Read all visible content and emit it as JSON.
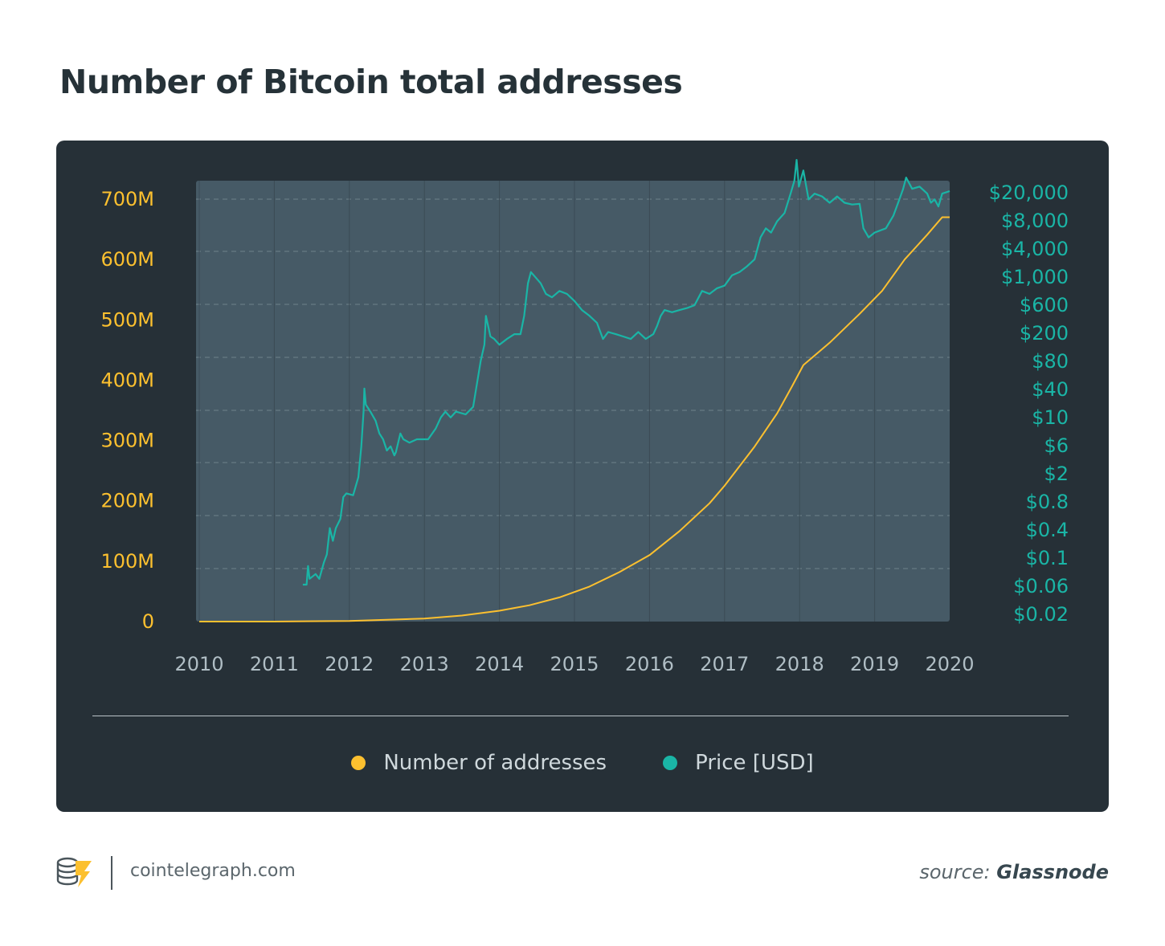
{
  "page": {
    "title": "Number of Bitcoin total addresses"
  },
  "footer": {
    "site": "cointelegraph.com",
    "source_prefix": "source:",
    "source_name": "Glassnode"
  },
  "legend": [
    {
      "label": "Number of addresses",
      "color": "#fcc02f"
    },
    {
      "label": "Price [USD]",
      "color": "#1ab5a6"
    }
  ],
  "colors": {
    "panel": "#263037",
    "plot": "#465a66",
    "addresses": "#fcc02f",
    "price": "#1ab5a6",
    "x_tick": "#b0bec5"
  },
  "chart_data": {
    "type": "line",
    "title": "Number of Bitcoin total addresses",
    "xlim": [
      2010,
      2020
    ],
    "x_ticks": [
      "2010",
      "2011",
      "2012",
      "2013",
      "2014",
      "2015",
      "2016",
      "2017",
      "2018",
      "2019",
      "2020"
    ],
    "y_left": {
      "range": [
        0,
        700000000
      ],
      "ticks": [
        0,
        100000000,
        200000000,
        300000000,
        400000000,
        500000000,
        600000000,
        700000000
      ],
      "tick_labels": [
        "0",
        "100M",
        "200M",
        "300M",
        "400M",
        "500M",
        "600M",
        "700M"
      ]
    },
    "y_right": {
      "scale": "log",
      "tick_labels": [
        "$0.02",
        "$0.06",
        "$0.1",
        "$0.4",
        "$0.8",
        "$2",
        "$6",
        "$10",
        "$40",
        "$80",
        "$200",
        "$600",
        "$1,000",
        "$4,000",
        "$8,000",
        "$20,000"
      ]
    },
    "grid": {
      "horizontal": true,
      "vertical": true
    },
    "legend_position": "bottom",
    "series": [
      {
        "name": "Number of addresses",
        "axis": "left",
        "color": "#fcc02f",
        "points": [
          [
            2010.0,
            0
          ],
          [
            2011.0,
            0
          ],
          [
            2012.0,
            1000000
          ],
          [
            2012.5,
            3000000
          ],
          [
            2013.0,
            5000000
          ],
          [
            2013.5,
            10000000
          ],
          [
            2014.0,
            18000000
          ],
          [
            2014.4,
            27000000
          ],
          [
            2014.8,
            40000000
          ],
          [
            2015.2,
            58000000
          ],
          [
            2015.6,
            82000000
          ],
          [
            2016.0,
            110000000
          ],
          [
            2016.4,
            150000000
          ],
          [
            2016.8,
            196000000
          ],
          [
            2017.0,
            225000000
          ],
          [
            2017.4,
            290000000
          ],
          [
            2017.7,
            345000000
          ],
          [
            2017.9,
            390000000
          ],
          [
            2018.05,
            425000000
          ],
          [
            2018.4,
            462000000
          ],
          [
            2018.8,
            510000000
          ],
          [
            2019.1,
            548000000
          ],
          [
            2019.4,
            600000000
          ],
          [
            2019.7,
            641000000
          ],
          [
            2019.9,
            670000000
          ],
          [
            2020.0,
            670000000
          ]
        ]
      },
      {
        "name": "Price [USD]",
        "axis": "right",
        "color": "#1ab5a6",
        "points": [
          [
            2011.38,
            0.05
          ],
          [
            2011.43,
            0.05
          ],
          [
            2011.45,
            0.09
          ],
          [
            2011.47,
            0.06
          ],
          [
            2011.55,
            0.07
          ],
          [
            2011.6,
            0.06
          ],
          [
            2011.66,
            0.1
          ],
          [
            2011.7,
            0.13
          ],
          [
            2011.74,
            0.3
          ],
          [
            2011.78,
            0.2
          ],
          [
            2011.82,
            0.3
          ],
          [
            2011.88,
            0.4
          ],
          [
            2011.92,
            0.8
          ],
          [
            2011.96,
            0.9
          ],
          [
            2012.05,
            0.85
          ],
          [
            2012.12,
            1.5
          ],
          [
            2012.16,
            4
          ],
          [
            2012.19,
            12
          ],
          [
            2012.2,
            25
          ],
          [
            2012.22,
            15
          ],
          [
            2012.28,
            12
          ],
          [
            2012.35,
            9
          ],
          [
            2012.4,
            6
          ],
          [
            2012.45,
            5
          ],
          [
            2012.5,
            3.5
          ],
          [
            2012.55,
            4
          ],
          [
            2012.6,
            3
          ],
          [
            2012.62,
            3.3
          ],
          [
            2012.68,
            6
          ],
          [
            2012.72,
            5
          ],
          [
            2012.8,
            4.5
          ],
          [
            2012.9,
            5
          ],
          [
            2013.05,
            5
          ],
          [
            2013.15,
            7
          ],
          [
            2013.22,
            10
          ],
          [
            2013.28,
            12
          ],
          [
            2013.35,
            10
          ],
          [
            2013.42,
            12
          ],
          [
            2013.55,
            11
          ],
          [
            2013.65,
            14
          ],
          [
            2013.75,
            60
          ],
          [
            2013.8,
            100
          ],
          [
            2013.82,
            250
          ],
          [
            2013.88,
            130
          ],
          [
            2013.93,
            120
          ],
          [
            2014.0,
            100
          ],
          [
            2014.1,
            120
          ],
          [
            2014.2,
            140
          ],
          [
            2014.28,
            140
          ],
          [
            2014.33,
            250
          ],
          [
            2014.38,
            700
          ],
          [
            2014.42,
            1000
          ],
          [
            2014.48,
            850
          ],
          [
            2014.55,
            700
          ],
          [
            2014.62,
            500
          ],
          [
            2014.7,
            450
          ],
          [
            2014.8,
            550
          ],
          [
            2014.9,
            500
          ],
          [
            2015.0,
            400
          ],
          [
            2015.1,
            300
          ],
          [
            2015.2,
            250
          ],
          [
            2015.3,
            200
          ],
          [
            2015.38,
            120
          ],
          [
            2015.45,
            150
          ],
          [
            2015.55,
            140
          ],
          [
            2015.65,
            130
          ],
          [
            2015.75,
            120
          ],
          [
            2015.85,
            150
          ],
          [
            2015.95,
            120
          ],
          [
            2016.05,
            140
          ],
          [
            2016.1,
            180
          ],
          [
            2016.15,
            250
          ],
          [
            2016.2,
            300
          ],
          [
            2016.3,
            280
          ],
          [
            2016.4,
            300
          ],
          [
            2016.5,
            320
          ],
          [
            2016.6,
            350
          ],
          [
            2016.7,
            550
          ],
          [
            2016.8,
            500
          ],
          [
            2016.9,
            600
          ],
          [
            2017.0,
            650
          ],
          [
            2017.1,
            900
          ],
          [
            2017.2,
            1000
          ],
          [
            2017.3,
            1200
          ],
          [
            2017.4,
            1500
          ],
          [
            2017.48,
            3000
          ],
          [
            2017.55,
            4000
          ],
          [
            2017.62,
            3500
          ],
          [
            2017.7,
            5000
          ],
          [
            2017.8,
            6500
          ],
          [
            2017.88,
            12000
          ],
          [
            2017.93,
            18000
          ],
          [
            2017.96,
            35000
          ],
          [
            2017.99,
            15000
          ],
          [
            2018.05,
            25000
          ],
          [
            2018.12,
            10000
          ],
          [
            2018.2,
            12000
          ],
          [
            2018.3,
            11000
          ],
          [
            2018.4,
            9000
          ],
          [
            2018.5,
            11000
          ],
          [
            2018.6,
            9000
          ],
          [
            2018.7,
            8500
          ],
          [
            2018.8,
            8700
          ],
          [
            2018.85,
            4000
          ],
          [
            2018.92,
            3000
          ],
          [
            2019.0,
            3500
          ],
          [
            2019.15,
            4000
          ],
          [
            2019.25,
            6000
          ],
          [
            2019.33,
            10000
          ],
          [
            2019.38,
            14000
          ],
          [
            2019.42,
            20000
          ],
          [
            2019.5,
            14000
          ],
          [
            2019.6,
            15000
          ],
          [
            2019.7,
            12000
          ],
          [
            2019.75,
            9000
          ],
          [
            2019.8,
            10000
          ],
          [
            2019.85,
            8000
          ],
          [
            2019.9,
            12000
          ],
          [
            2020.0,
            13000
          ]
        ]
      }
    ]
  }
}
